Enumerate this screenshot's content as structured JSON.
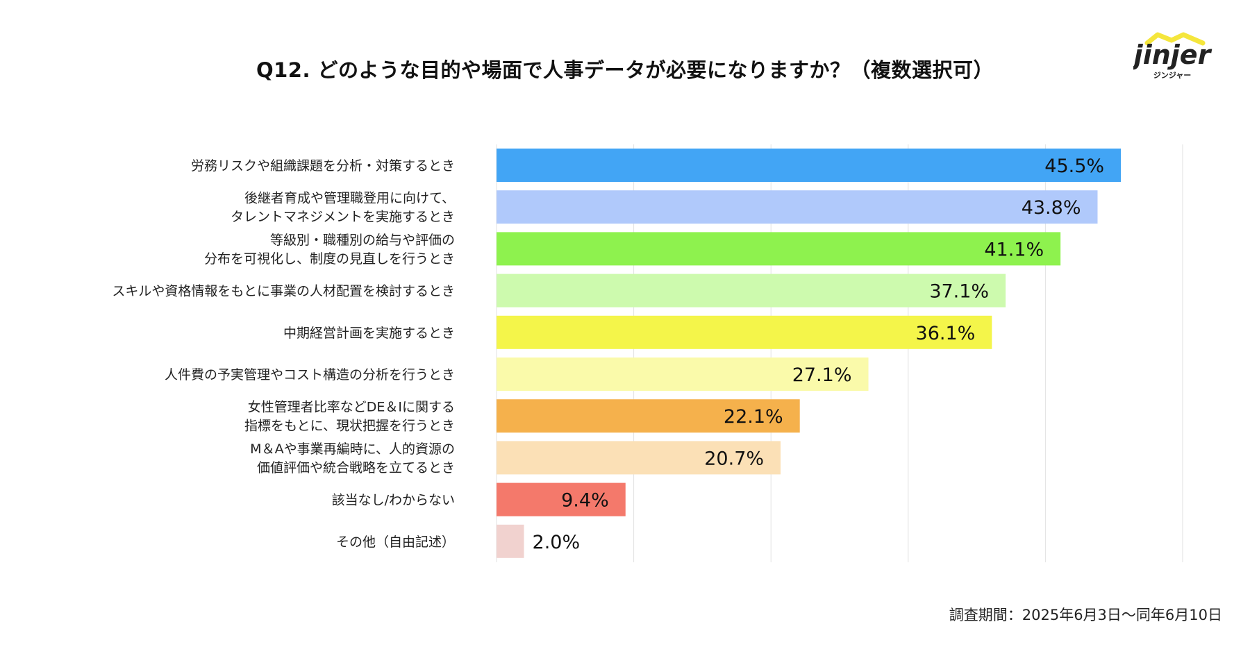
{
  "title": "Q12. どのような目的や場面で人事データが必要になりますか？（複数選択可）",
  "logo": {
    "wordmark": "jinjer",
    "sub": "ジンジャー",
    "accent_color": "#f5e63c",
    "text_color": "#222222"
  },
  "footer": "調査期間：2025年6月3日〜同年6月10日",
  "chart_data": {
    "type": "bar",
    "orientation": "horizontal",
    "xlim": [
      0,
      50
    ],
    "grid": true,
    "categories": [
      [
        "労務リスクや組織課題を分析・対策するとき"
      ],
      [
        "後継者育成や管理職登用に向けて、",
        "タレントマネジメントを実施するとき"
      ],
      [
        "等級別・職種別の給与や評価の",
        "分布を可視化し、制度の見直しを行うとき"
      ],
      [
        "スキルや資格情報をもとに事業の人材配置を検討するとき"
      ],
      [
        "中期経営計画を実施するとき"
      ],
      [
        "人件費の予実管理やコスト構造の分析を行うとき"
      ],
      [
        "女性管理者比率などDE＆Iに関する",
        "指標をもとに、現状把握を行うとき"
      ],
      [
        "M＆Aや事業再編時に、人的資源の",
        "価値評価や統合戦略を立てるとき"
      ],
      [
        "該当なし/わからない"
      ],
      [
        "その他（自由記述）"
      ]
    ],
    "values": [
      45.5,
      43.8,
      41.1,
      37.1,
      36.1,
      27.1,
      22.1,
      20.7,
      9.4,
      2.0
    ],
    "value_labels": [
      "45.5%",
      "43.8%",
      "41.1%",
      "37.1%",
      "36.1%",
      "27.1%",
      "22.1%",
      "20.7%",
      "9.4%",
      "2.0%"
    ],
    "colors": [
      "#42a5f5",
      "#b0c9fb",
      "#8ef24e",
      "#cdfaae",
      "#f4f54a",
      "#fafaaa",
      "#f5b14c",
      "#fbe0b6",
      "#f4796b",
      "#f1d2cf"
    ]
  }
}
